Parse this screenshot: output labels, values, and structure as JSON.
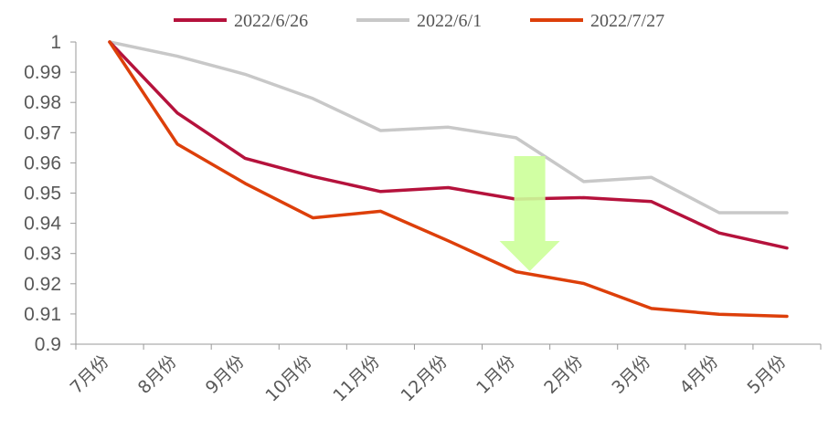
{
  "chart_data": {
    "type": "line",
    "categories": [
      "7月份",
      "8月份",
      "9月份",
      "10月份",
      "11月份",
      "12月份",
      "1月份",
      "2月份",
      "3月份",
      "4月份",
      "5月份"
    ],
    "series": [
      {
        "name": "2022/6/26",
        "color": "#b5123c",
        "values": [
          1.0,
          0.9765,
          0.9615,
          0.9555,
          0.9505,
          0.9518,
          0.948,
          0.9485,
          0.9472,
          0.9368,
          0.9318
        ]
      },
      {
        "name": "2022/6/1",
        "color": "#c8c8c8",
        "values": [
          1.0,
          0.9953,
          0.9893,
          0.9813,
          0.9707,
          0.9718,
          0.9683,
          0.9538,
          0.9552,
          0.9435,
          0.9435
        ]
      },
      {
        "name": "2022/7/27",
        "color": "#dd3f0a",
        "values": [
          1.0,
          0.9662,
          0.9532,
          0.9418,
          0.944,
          0.9342,
          0.924,
          0.9201,
          0.9118,
          0.9099,
          0.9092
        ]
      }
    ],
    "ylim": [
      0.9,
      1.0
    ],
    "yticks": [
      "1",
      "0.99",
      "0.98",
      "0.97",
      "0.96",
      "0.95",
      "0.94",
      "0.93",
      "0.92",
      "0.91",
      "0.9"
    ],
    "legend_position": "top",
    "grid": false,
    "annotation": {
      "type": "down-arrow",
      "color": "#ccff99",
      "near_category": "1月份"
    }
  }
}
